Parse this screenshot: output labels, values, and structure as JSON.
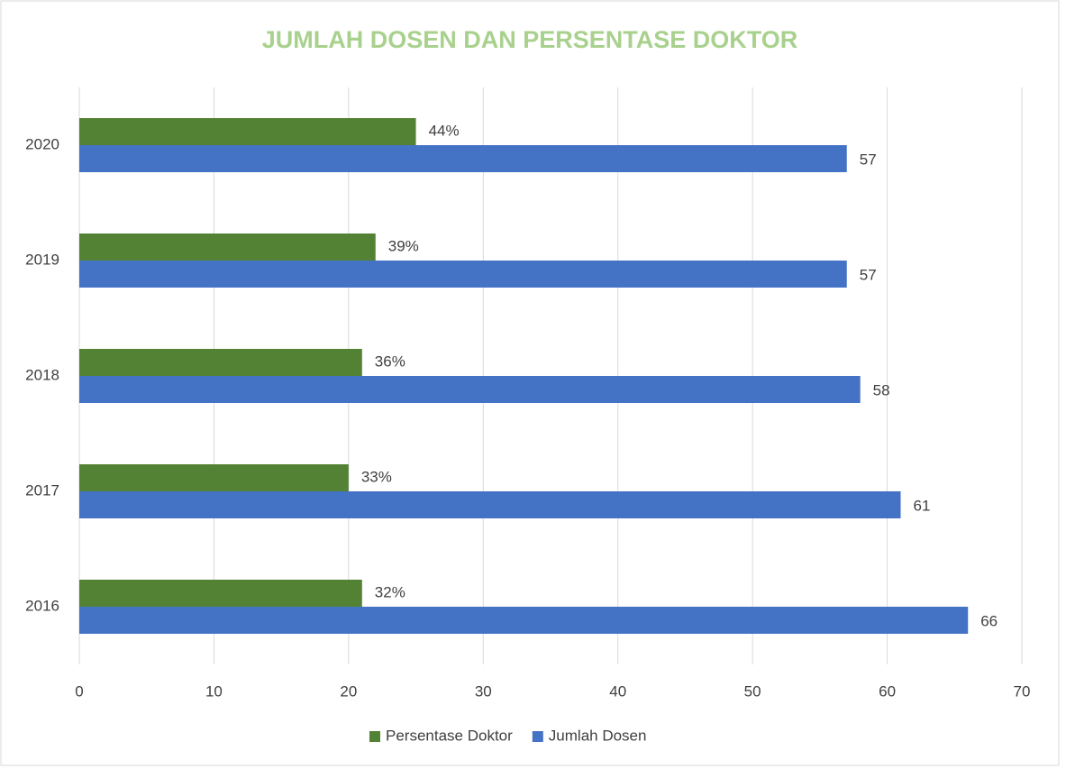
{
  "chart_data": {
    "type": "bar",
    "orientation": "horizontal",
    "title": "JUMLAH DOSEN DAN PERSENTASE DOKTOR",
    "categories": [
      "2016",
      "2017",
      "2018",
      "2019",
      "2020"
    ],
    "series": [
      {
        "name": "Persentase Doktor",
        "color": "#548235",
        "values": [
          21,
          20,
          21,
          22,
          25
        ],
        "data_labels": [
          "32%",
          "33%",
          "36%",
          "39%",
          "44%"
        ]
      },
      {
        "name": "Jumlah Dosen",
        "color": "#4472c4",
        "values": [
          66,
          61,
          58,
          57,
          57
        ]
      }
    ],
    "xlim": [
      0,
      70
    ],
    "xticks": [
      0,
      10,
      20,
      30,
      40,
      50,
      60,
      70
    ],
    "grid": true,
    "legend": "bottom"
  }
}
